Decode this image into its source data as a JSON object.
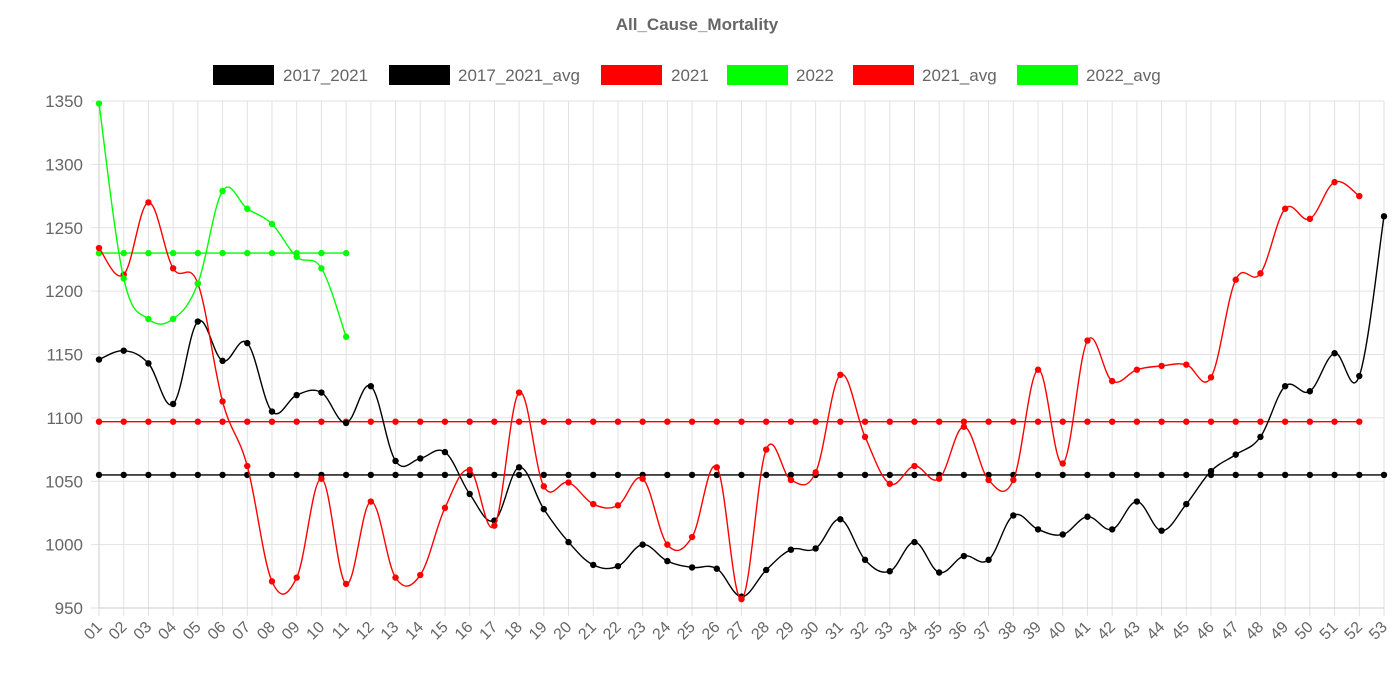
{
  "chart_data": {
    "type": "line",
    "title": "All_Cause_Mortality",
    "xlabel": "",
    "ylabel": "",
    "ylim": [
      950,
      1350
    ],
    "yticks": [
      950,
      1000,
      1050,
      1100,
      1150,
      1200,
      1250,
      1300,
      1350
    ],
    "categories": [
      "01",
      "02",
      "03",
      "04",
      "05",
      "06",
      "07",
      "08",
      "09",
      "10",
      "11",
      "12",
      "13",
      "14",
      "15",
      "16",
      "17",
      "18",
      "19",
      "20",
      "21",
      "22",
      "23",
      "24",
      "25",
      "26",
      "27",
      "28",
      "29",
      "30",
      "31",
      "32",
      "33",
      "34",
      "35",
      "36",
      "37",
      "38",
      "39",
      "40",
      "41",
      "42",
      "43",
      "44",
      "45",
      "46",
      "47",
      "48",
      "49",
      "50",
      "51",
      "52",
      "53"
    ],
    "grid": true,
    "legend_position": "top",
    "series": [
      {
        "name": "2017_2021",
        "color": "#000000",
        "values": [
          1146,
          1153,
          1143,
          1111,
          1176,
          1145,
          1159,
          1105,
          1118,
          1120,
          1096,
          1125,
          1066,
          1068,
          1073,
          1040,
          1019,
          1061,
          1028,
          1002,
          984,
          983,
          1000,
          987,
          982,
          981,
          959,
          980,
          996,
          997,
          1020,
          988,
          979,
          1002,
          978,
          991,
          988,
          1023,
          1012,
          1008,
          1022,
          1012,
          1034,
          1011,
          1032,
          1058,
          1071,
          1085,
          1125,
          1121,
          1151,
          1133,
          1259
        ]
      },
      {
        "name": "2017_2021_avg",
        "color": "#000000",
        "values": [
          1055,
          1055,
          1055,
          1055,
          1055,
          1055,
          1055,
          1055,
          1055,
          1055,
          1055,
          1055,
          1055,
          1055,
          1055,
          1055,
          1055,
          1055,
          1055,
          1055,
          1055,
          1055,
          1055,
          1055,
          1055,
          1055,
          1055,
          1055,
          1055,
          1055,
          1055,
          1055,
          1055,
          1055,
          1055,
          1055,
          1055,
          1055,
          1055,
          1055,
          1055,
          1055,
          1055,
          1055,
          1055,
          1055,
          1055,
          1055,
          1055,
          1055,
          1055,
          1055,
          1055
        ]
      },
      {
        "name": "2021",
        "color": "#ff0000",
        "values": [
          1234,
          1213,
          1270,
          1218,
          1206,
          1113,
          1062,
          971,
          974,
          1052,
          969,
          1034,
          974,
          976,
          1029,
          1059,
          1015,
          1120,
          1046,
          1049,
          1032,
          1031,
          1052,
          1000,
          1006,
          1061,
          957,
          1075,
          1051,
          1057,
          1134,
          1085,
          1048,
          1062,
          1052,
          1093,
          1051,
          1051,
          1138,
          1064,
          1161,
          1129,
          1138,
          1141,
          1142,
          1132,
          1209,
          1214,
          1265,
          1257,
          1286,
          1275,
          null
        ]
      },
      {
        "name": "2022",
        "color": "#00ff00",
        "values": [
          1348,
          1210,
          1178,
          1178,
          1206,
          1279,
          1265,
          1253,
          1227,
          1218,
          1164,
          null,
          null,
          null,
          null,
          null,
          null,
          null,
          null,
          null,
          null,
          null,
          null,
          null,
          null,
          null,
          null,
          null,
          null,
          null,
          null,
          null,
          null,
          null,
          null,
          null,
          null,
          null,
          null,
          null,
          null,
          null,
          null,
          null,
          null,
          null,
          null,
          null,
          null,
          null,
          null,
          null,
          null
        ]
      },
      {
        "name": "2021_avg",
        "color": "#ff0000",
        "values": [
          1097,
          1097,
          1097,
          1097,
          1097,
          1097,
          1097,
          1097,
          1097,
          1097,
          1097,
          1097,
          1097,
          1097,
          1097,
          1097,
          1097,
          1097,
          1097,
          1097,
          1097,
          1097,
          1097,
          1097,
          1097,
          1097,
          1097,
          1097,
          1097,
          1097,
          1097,
          1097,
          1097,
          1097,
          1097,
          1097,
          1097,
          1097,
          1097,
          1097,
          1097,
          1097,
          1097,
          1097,
          1097,
          1097,
          1097,
          1097,
          1097,
          1097,
          1097,
          1097,
          null
        ]
      },
      {
        "name": "2022_avg",
        "color": "#00ff00",
        "values": [
          1230,
          1230,
          1230,
          1230,
          1230,
          1230,
          1230,
          1230,
          1230,
          1230,
          1230,
          null,
          null,
          null,
          null,
          null,
          null,
          null,
          null,
          null,
          null,
          null,
          null,
          null,
          null,
          null,
          null,
          null,
          null,
          null,
          null,
          null,
          null,
          null,
          null,
          null,
          null,
          null,
          null,
          null,
          null,
          null,
          null,
          null,
          null,
          null,
          null,
          null,
          null,
          null,
          null,
          null,
          null
        ]
      }
    ]
  }
}
